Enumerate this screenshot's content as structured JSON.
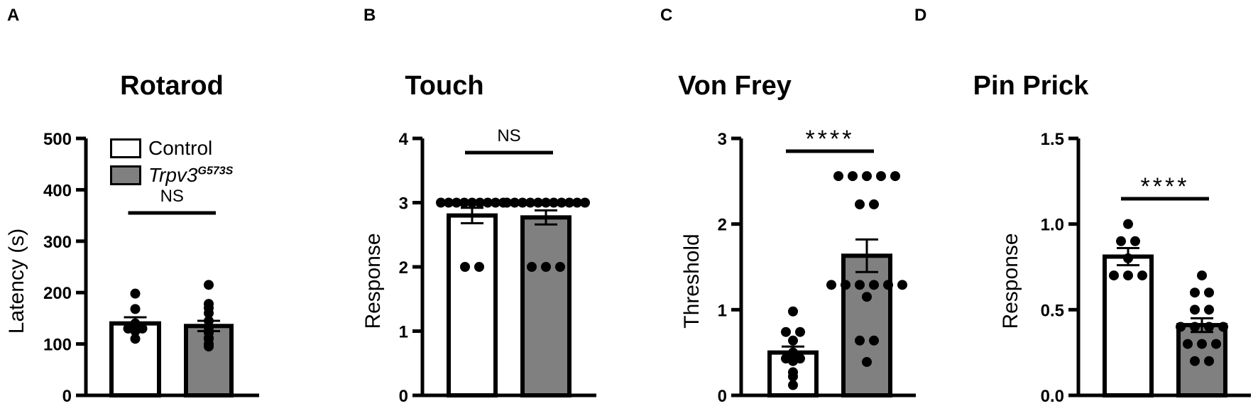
{
  "figure": {
    "colors": {
      "control": "#ffffff",
      "trpv3": "#808080",
      "stroke": "#000000",
      "dot": "#000000"
    },
    "legend": {
      "items": [
        {
          "label": "Control",
          "color": "#ffffff"
        },
        {
          "label_main": "Trpv3",
          "label_sup": "G573S",
          "color": "#808080"
        }
      ]
    }
  },
  "chart_data": [
    {
      "panel": "A",
      "type": "bar",
      "title": "Rotarod",
      "xlabel": "",
      "ylabel": "Latency (s)",
      "ylim": [
        0,
        500
      ],
      "yticks": [
        0,
        100,
        200,
        300,
        400,
        500
      ],
      "ytick_labels": [
        "0",
        "100",
        "200",
        "300",
        "400",
        "500"
      ],
      "categories": [
        "Control",
        "Trpv3 G573S"
      ],
      "values": [
        140,
        135
      ],
      "sem": [
        12,
        10
      ],
      "points": [
        [
          198,
          168,
          140,
          130,
          130,
          125,
          110
        ],
        [
          215,
          178,
          170,
          160,
          145,
          132,
          125,
          122,
          112,
          110,
          100,
          98,
          95
        ]
      ],
      "significance": "NS",
      "legend": [
        "Control",
        "Trpv3 G573S"
      ],
      "legend_position": "upper left",
      "grid": false
    },
    {
      "panel": "B",
      "type": "bar",
      "title": "Touch",
      "xlabel": "",
      "ylabel": "Response",
      "ylim": [
        0,
        4
      ],
      "yticks": [
        0,
        1,
        2,
        3,
        4
      ],
      "ytick_labels": [
        "0",
        "1",
        "2",
        "3",
        "4"
      ],
      "categories": [
        "Control",
        "Trpv3 G573S"
      ],
      "values": [
        2.8,
        2.77
      ],
      "sem": [
        0.12,
        0.11
      ],
      "points": [
        [
          3,
          3,
          3,
          3,
          3,
          3,
          3,
          3,
          3,
          2,
          2
        ],
        [
          3,
          3,
          3,
          3,
          3,
          3,
          3,
          3,
          3,
          3,
          3,
          2,
          2,
          2
        ]
      ],
      "significance": "NS",
      "grid": false
    },
    {
      "panel": "C",
      "type": "bar",
      "title": "Von Frey",
      "xlabel": "",
      "ylabel": "Threshold",
      "ylim": [
        0,
        3
      ],
      "yticks": [
        0,
        1,
        2,
        3
      ],
      "ytick_labels": [
        "0",
        "1",
        "2",
        "3"
      ],
      "categories": [
        "Control",
        "Trpv3 G573S"
      ],
      "values": [
        0.5,
        1.63
      ],
      "sem": [
        0.07,
        0.19
      ],
      "points": [
        [
          0.98,
          0.74,
          0.74,
          0.64,
          0.5,
          0.43,
          0.43,
          0.4,
          0.27,
          0.22,
          0.12
        ],
        [
          2.56,
          2.56,
          2.56,
          2.56,
          2.56,
          2.23,
          2.23,
          1.29,
          1.29,
          1.29,
          1.29,
          1.29,
          1.29,
          1.15,
          0.64,
          0.64,
          0.39
        ]
      ],
      "significance": "****",
      "grid": false
    },
    {
      "panel": "D",
      "type": "bar",
      "title": "Pin Prick",
      "xlabel": "",
      "ylabel": "Response",
      "ylim": [
        0,
        1.5
      ],
      "yticks": [
        0,
        0.5,
        1.0,
        1.5
      ],
      "ytick_labels": [
        "0.0",
        "0.5",
        "1.0",
        "1.5"
      ],
      "categories": [
        "Control",
        "Trpv3 G573S"
      ],
      "values": [
        0.81,
        0.41
      ],
      "sem": [
        0.05,
        0.04
      ],
      "points": [
        [
          1.0,
          0.9,
          0.9,
          0.8,
          0.7,
          0.7,
          0.7
        ],
        [
          0.7,
          0.6,
          0.6,
          0.5,
          0.5,
          0.4,
          0.4,
          0.4,
          0.4,
          0.3,
          0.3,
          0.3,
          0.2,
          0.2
        ]
      ],
      "significance": "****",
      "grid": false
    }
  ]
}
